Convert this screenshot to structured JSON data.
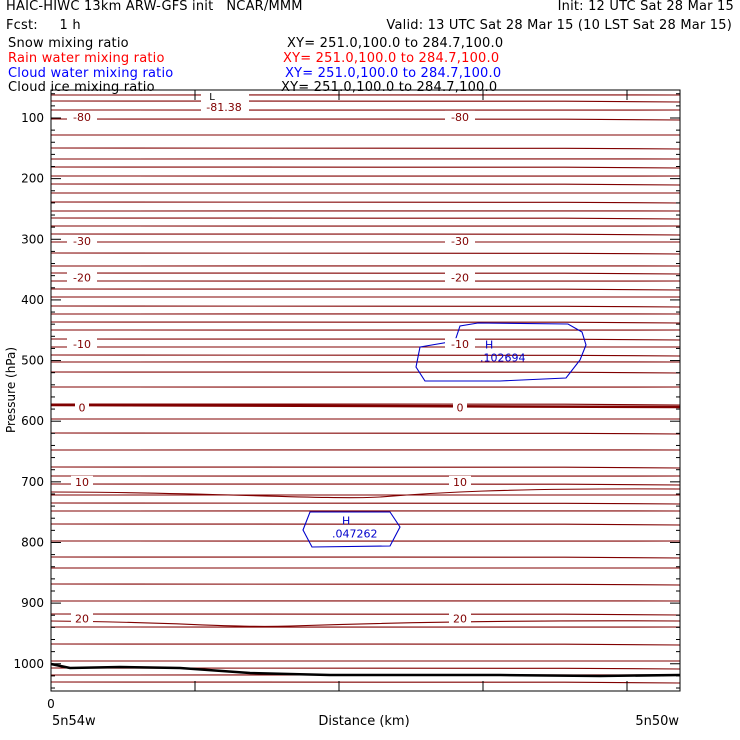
{
  "header": {
    "line1_left": "HAIC-HIWC 13km ARW-GFS init   NCAR/MMM",
    "line1_right": "Init: 12 UTC Sat 28 Mar 15",
    "line2_left": "Fcst:     1 h",
    "line2_right": "Valid: 13 UTC Sat 28 Mar 15 (10 LST Sat 28 Mar 15)"
  },
  "fields": [
    {
      "label": "Snow mixing ratio",
      "xy": "XY= 251.0,100.0 to 284.7,100.0",
      "color": "#000000"
    },
    {
      "label": "Rain water mixing ratio",
      "xy": "XY= 251.0,100.0 to 284.7,100.0",
      "color": "#ff0000"
    },
    {
      "label": "Cloud water mixing ratio",
      "xy": "XY= 251.0,100.0 to 284.7,100.0",
      "color": "#0000ff"
    },
    {
      "label": "Cloud ice mixing ratio",
      "xy": "XY= 251.0,100.0 to 284.7,100.0",
      "color": "#000000"
    }
  ],
  "colors": {
    "temperature_contour": "#800000",
    "cloud_water_contour": "#0000cc",
    "axis": "#000000"
  },
  "chart_data": {
    "type": "contour",
    "xlabel": "Distance (km)",
    "ylabel": "Pressure (hPa)",
    "x_ticks": [
      "0"
    ],
    "x_endpoints": [
      "5n54w",
      "5n50w"
    ],
    "y_ticks": [
      100,
      200,
      300,
      400,
      500,
      600,
      700,
      800,
      900,
      1000
    ],
    "y_scale": "linear, inverted",
    "ylim": [
      1050,
      50
    ],
    "temperature_contour_labels": [
      {
        "value": "-80",
        "p": 98
      },
      {
        "value": "-30",
        "p": 303
      },
      {
        "value": "-20",
        "p": 363
      },
      {
        "value": "-10",
        "p": 473
      },
      {
        "value": "0",
        "p": 577
      },
      {
        "value": "10",
        "p": 700
      },
      {
        "value": "20",
        "p": 925
      }
    ],
    "low_marker": {
      "label": "L",
      "value": "-81.38"
    },
    "cloud_water_maxima": [
      {
        "label": "H",
        "value": ".102694",
        "p": 490
      },
      {
        "label": "H",
        "value": ".047262",
        "p": 780
      }
    ]
  }
}
